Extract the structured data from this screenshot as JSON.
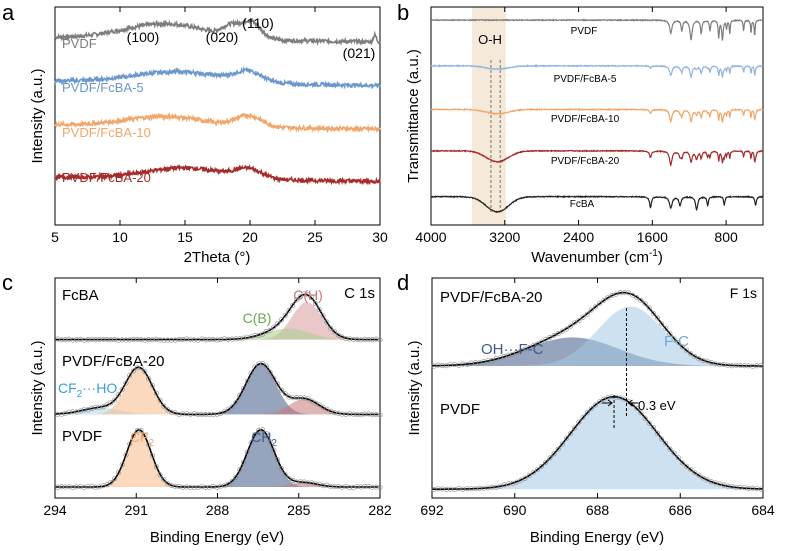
{
  "chart_data": [
    {
      "panel_label": "a",
      "type": "line",
      "xlabel": "2Theta (°)",
      "ylabel": "Intensity (a.u.)",
      "xlim": [
        5,
        30
      ],
      "xticks": [
        5,
        10,
        15,
        20,
        25,
        30
      ],
      "peak_labels": [
        {
          "text": "(100)",
          "x": 13.2
        },
        {
          "text": "(020)",
          "x": 18.4
        },
        {
          "text": "(110)",
          "x": 20.0
        },
        {
          "text": "(021)",
          "x": 28.8
        }
      ],
      "series": [
        {
          "name": "PVDF",
          "color": "#7d7d7d",
          "baseline": 0.86,
          "peaks": [
            {
              "c": 13.5,
              "w": 3.2,
              "h": 0.07
            },
            {
              "c": 18.4,
              "w": 0.6,
              "h": 0.04
            },
            {
              "c": 20.0,
              "w": 0.8,
              "h": 0.08
            },
            {
              "c": 29.6,
              "w": 0.12,
              "h": 0.03
            }
          ]
        },
        {
          "name": "PVDF/FcBA-5",
          "color": "#6b97cc",
          "baseline": 0.66,
          "peaks": [
            {
              "c": 14.5,
              "w": 3.5,
              "h": 0.05
            },
            {
              "c": 19.9,
              "w": 1.0,
              "h": 0.045
            }
          ]
        },
        {
          "name": "PVDF/FcBA-10",
          "color": "#f2a66a",
          "baseline": 0.46,
          "peaks": [
            {
              "c": 13.5,
              "w": 3.0,
              "h": 0.045
            },
            {
              "c": 19.9,
              "w": 1.0,
              "h": 0.05
            }
          ]
        },
        {
          "name": "PVDF/FcBA-20",
          "color": "#a52a2a",
          "baseline": 0.22,
          "peaks": [
            {
              "c": 15.0,
              "w": 3.0,
              "h": 0.05
            },
            {
              "c": 19.9,
              "w": 1.0,
              "h": 0.04
            }
          ]
        }
      ]
    },
    {
      "panel_label": "b",
      "type": "line",
      "xlabel": "Wavenumber (cm",
      "xlabel_sup": "-1",
      "xlabel_end": ")",
      "ylabel": "Transmittance (a.u.)",
      "xlim": [
        4000,
        400
      ],
      "xticks": [
        4000,
        3200,
        2400,
        1600,
        800
      ],
      "band_label": "O-H",
      "band_range": [
        3650,
        3000
      ],
      "dashed_lines": [
        3350,
        3250
      ],
      "series": [
        {
          "name": "PVDF",
          "color": "#7d7d7d",
          "baseline": 0.94
        },
        {
          "name": "PVDF/FcBA-5",
          "color": "#8fb4e0",
          "baseline": 0.73
        },
        {
          "name": "PVDF/FcBA-10",
          "color": "#f2a66a",
          "baseline": 0.53
        },
        {
          "name": "PVDF/FcBA-20",
          "color": "#a52a2a",
          "baseline": 0.34
        },
        {
          "name": "FcBA",
          "color": "#222222",
          "baseline": 0.13
        }
      ]
    },
    {
      "panel_label": "c",
      "type": "line",
      "xlabel": "Binding Energy (eV)",
      "ylabel": "Intensity (a.u.)",
      "xlim": [
        294,
        282
      ],
      "xticks": [
        294,
        291,
        288,
        285,
        282
      ],
      "corner_label": "C 1s",
      "spectra": [
        {
          "name": "FcBA",
          "baseline": 0.72,
          "components": [
            {
              "label": "C(H)",
              "c": 284.7,
              "w": 0.55,
              "h": 0.17,
              "color": "#d9999a"
            },
            {
              "label": "C(B)",
              "c": 285.4,
              "w": 0.8,
              "h": 0.05,
              "color": "#a8d08d"
            }
          ]
        },
        {
          "name": "PVDF/FcBA-20",
          "baseline": 0.38,
          "components": [
            {
              "label": "CF2···HO",
              "c": 292.3,
              "w": 0.7,
              "h": 0.03,
              "color": "#a9d7ee"
            },
            {
              "label": "",
              "c": 290.9,
              "w": 0.5,
              "h": 0.21,
              "color": "#f5b98a"
            },
            {
              "label": "",
              "c": 286.4,
              "w": 0.55,
              "h": 0.23,
              "color": "#3f5a87"
            },
            {
              "label": "",
              "c": 284.8,
              "w": 0.55,
              "h": 0.07,
              "color": "#c9777a"
            }
          ]
        },
        {
          "name": "PVDF",
          "baseline": 0.05,
          "components": [
            {
              "label": "CF2",
              "c": 290.9,
              "w": 0.45,
              "h": 0.26,
              "color": "#f5b98a"
            },
            {
              "label": "CH2",
              "c": 286.4,
              "w": 0.5,
              "h": 0.26,
              "color": "#3f5a87"
            },
            {
              "label": "",
              "c": 284.8,
              "w": 0.5,
              "h": 0.02,
              "color": "#c9777a"
            }
          ]
        }
      ]
    },
    {
      "panel_label": "d",
      "type": "line",
      "xlabel": "Binding Energy (eV)",
      "ylabel": "Intensity (a.u.)",
      "xlim": [
        692,
        684
      ],
      "xticks": [
        692,
        690,
        688,
        686,
        684
      ],
      "corner_label": "F 1s",
      "shift_label": "0.3 eV",
      "spectra": [
        {
          "name": "PVDF/FcBA-20",
          "baseline": 0.6,
          "peak_position": 687.3,
          "components": [
            {
              "label": "OH···F-C",
              "c": 688.6,
              "w": 1.1,
              "h": 0.13,
              "color": "#3f5a87"
            },
            {
              "label": "F-C",
              "c": 687.2,
              "w": 0.8,
              "h": 0.27,
              "color": "#a6c8e3"
            }
          ]
        },
        {
          "name": "PVDF",
          "baseline": 0.04,
          "peak_position": 687.6,
          "components": [
            {
              "label": "",
              "c": 687.6,
              "w": 1.05,
              "h": 0.42,
              "color": "#a6c8e3"
            }
          ]
        }
      ]
    }
  ]
}
